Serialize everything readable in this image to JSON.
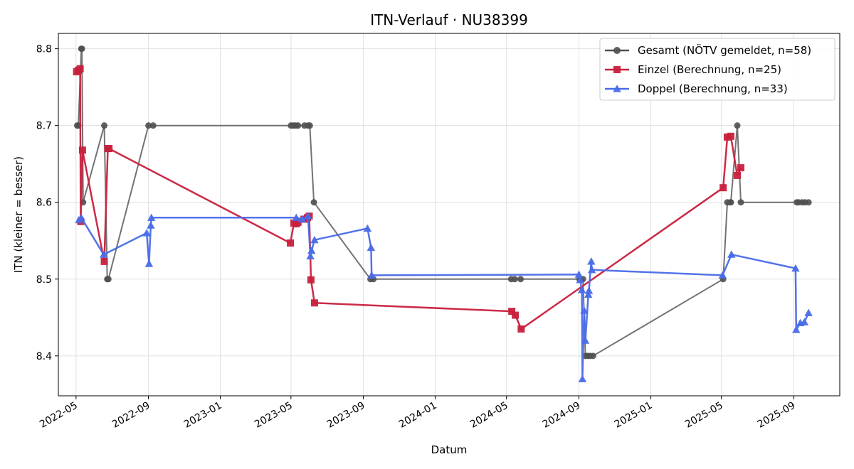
{
  "chart_data": {
    "type": "line",
    "title": "ITN-Verlauf · NU38399",
    "xlabel": "Datum",
    "ylabel": "ITN  (kleiner = besser)",
    "x_is_date": true,
    "xlim": [
      "2022-04-01",
      "2025-11-18"
    ],
    "ylim": [
      8.348,
      8.82
    ],
    "grid": true,
    "legend_position": "top-right",
    "x_ticks": [
      "2022-05",
      "2022-09",
      "2023-01",
      "2023-05",
      "2023-09",
      "2024-01",
      "2024-05",
      "2024-09",
      "2025-01",
      "2025-05",
      "2025-09"
    ],
    "x_tick_dates": [
      "2022-05-01",
      "2022-09-01",
      "2023-01-01",
      "2023-05-01",
      "2023-09-01",
      "2024-01-01",
      "2024-05-01",
      "2024-09-01",
      "2025-01-01",
      "2025-05-01",
      "2025-09-01"
    ],
    "y_ticks": [
      "8.4",
      "8.5",
      "8.6",
      "8.7",
      "8.8"
    ],
    "y_tick_values": [
      8.4,
      8.5,
      8.6,
      8.7,
      8.8
    ],
    "series": [
      {
        "name": "Gesamt (NÖTV gemeldet, n=58)",
        "color": "#505050",
        "marker": "circle",
        "points": [
          [
            "2022-05-03",
            8.7
          ],
          [
            "2022-05-05",
            8.7
          ],
          [
            "2022-05-10",
            8.8
          ],
          [
            "2022-05-11",
            8.8
          ],
          [
            "2022-05-13",
            8.6
          ],
          [
            "2022-06-18",
            8.7
          ],
          [
            "2022-06-23",
            8.5
          ],
          [
            "2022-06-25",
            8.5
          ],
          [
            "2022-09-01",
            8.7
          ],
          [
            "2022-09-09",
            8.7
          ],
          [
            "2023-05-01",
            8.7
          ],
          [
            "2023-05-05",
            8.7
          ],
          [
            "2023-05-09",
            8.7
          ],
          [
            "2023-05-13",
            8.7
          ],
          [
            "2023-05-24",
            8.7
          ],
          [
            "2023-05-30",
            8.7
          ],
          [
            "2023-06-02",
            8.7
          ],
          [
            "2023-06-09",
            8.6
          ],
          [
            "2023-09-13",
            8.5
          ],
          [
            "2023-09-18",
            8.5
          ],
          [
            "2024-05-09",
            8.5
          ],
          [
            "2024-05-15",
            8.5
          ],
          [
            "2024-05-25",
            8.5
          ],
          [
            "2024-09-02",
            8.5
          ],
          [
            "2024-09-08",
            8.5
          ],
          [
            "2024-09-12",
            8.4
          ],
          [
            "2024-09-16",
            8.4
          ],
          [
            "2024-09-20",
            8.4
          ],
          [
            "2024-09-25",
            8.4
          ],
          [
            "2025-05-04",
            8.5
          ],
          [
            "2025-05-11",
            8.6
          ],
          [
            "2025-05-16",
            8.6
          ],
          [
            "2025-05-17",
            8.6
          ],
          [
            "2025-05-28",
            8.7
          ],
          [
            "2025-06-03",
            8.6
          ],
          [
            "2025-09-06",
            8.6
          ],
          [
            "2025-09-09",
            8.6
          ],
          [
            "2025-09-15",
            8.6
          ],
          [
            "2025-09-20",
            8.6
          ],
          [
            "2025-09-26",
            8.6
          ]
        ]
      },
      {
        "name": "Einzel (Berechnung, n=25)",
        "color": "#c8203c",
        "marker": "square",
        "points": [
          [
            "2022-05-02",
            8.77
          ],
          [
            "2022-05-05",
            8.772
          ],
          [
            "2022-05-08",
            8.774
          ],
          [
            "2022-05-09",
            8.575
          ],
          [
            "2022-05-12",
            8.668
          ],
          [
            "2022-06-18",
            8.523
          ],
          [
            "2022-06-24",
            8.67
          ],
          [
            "2022-06-26",
            8.67
          ],
          [
            "2023-04-30",
            8.547
          ],
          [
            "2023-05-06",
            8.573
          ],
          [
            "2023-05-10",
            8.572
          ],
          [
            "2023-05-13",
            8.574
          ],
          [
            "2023-05-23",
            8.578
          ],
          [
            "2023-05-29",
            8.58
          ],
          [
            "2023-06-01",
            8.582
          ],
          [
            "2023-06-04",
            8.499
          ],
          [
            "2023-06-10",
            8.469
          ],
          [
            "2024-05-10",
            8.458
          ],
          [
            "2024-05-16",
            8.453
          ],
          [
            "2024-05-26",
            8.435
          ],
          [
            "2025-05-04",
            8.619
          ],
          [
            "2025-05-11",
            8.685
          ],
          [
            "2025-05-17",
            8.686
          ],
          [
            "2025-05-28",
            8.635
          ],
          [
            "2025-06-03",
            8.645
          ]
        ]
      },
      {
        "name": "Doppel (Berechnung, n=33)",
        "color": "#4a6be8",
        "marker": "triangle",
        "points": [
          [
            "2022-05-06",
            8.577
          ],
          [
            "2022-05-10",
            8.58
          ],
          [
            "2022-06-17",
            8.532
          ],
          [
            "2022-08-29",
            8.56
          ],
          [
            "2022-09-02",
            8.52
          ],
          [
            "2022-09-05",
            8.57
          ],
          [
            "2022-09-06",
            8.58
          ],
          [
            "2023-05-10",
            8.58
          ],
          [
            "2023-05-20",
            8.578
          ],
          [
            "2023-05-30",
            8.582
          ],
          [
            "2023-06-03",
            8.53
          ],
          [
            "2023-06-05",
            8.537
          ],
          [
            "2023-06-10",
            8.551
          ],
          [
            "2023-09-08",
            8.566
          ],
          [
            "2023-09-14",
            8.541
          ],
          [
            "2023-09-15",
            8.505
          ],
          [
            "2024-09-01",
            8.506
          ],
          [
            "2024-09-03",
            8.499
          ],
          [
            "2024-09-06",
            8.486
          ],
          [
            "2024-09-07",
            8.37
          ],
          [
            "2024-09-10",
            8.459
          ],
          [
            "2024-09-12",
            8.42
          ],
          [
            "2024-09-17",
            8.48
          ],
          [
            "2024-09-18",
            8.485
          ],
          [
            "2024-09-22",
            8.523
          ],
          [
            "2024-09-23",
            8.512
          ],
          [
            "2025-05-03",
            8.505
          ],
          [
            "2025-05-18",
            8.532
          ],
          [
            "2025-09-04",
            8.514
          ],
          [
            "2025-09-05",
            8.434
          ],
          [
            "2025-09-12",
            8.443
          ],
          [
            "2025-09-19",
            8.444
          ],
          [
            "2025-09-26",
            8.456
          ]
        ]
      }
    ]
  }
}
